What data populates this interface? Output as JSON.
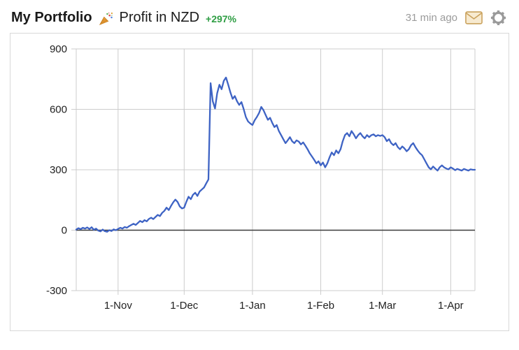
{
  "header": {
    "title": "My Portfolio",
    "emoji": "🎉",
    "subtitle": "Profit in NZD",
    "change": "+297%",
    "updated": "31 min ago"
  },
  "colors": {
    "line": "#3e63c4",
    "positive": "#2f9e44",
    "grid": "#cccccc",
    "zero_line": "#3a3a3a",
    "tick_text": "#222222",
    "muted_text": "#9b9b9b"
  },
  "chart_data": {
    "type": "line",
    "title": "Profit in NZD",
    "xlabel": "",
    "ylabel": "",
    "xlim": [
      -19,
      162
    ],
    "ylim": [
      -300,
      900
    ],
    "y_ticks": [
      -300,
      0,
      300,
      600,
      900
    ],
    "x_ticks": [
      {
        "day": 0,
        "label": "1-Nov"
      },
      {
        "day": 30,
        "label": "1-Dec"
      },
      {
        "day": 61,
        "label": "1-Jan"
      },
      {
        "day": 92,
        "label": "1-Feb"
      },
      {
        "day": 120,
        "label": "1-Mar"
      },
      {
        "day": 151,
        "label": "1-Apr"
      }
    ],
    "grid": true,
    "legend": "none",
    "series": [
      {
        "name": "Profit (NZD)",
        "color": "#3e63c4",
        "points": [
          [
            -19,
            3
          ],
          [
            -18,
            10
          ],
          [
            -17,
            5
          ],
          [
            -16,
            12
          ],
          [
            -15,
            8
          ],
          [
            -14,
            14
          ],
          [
            -13,
            6
          ],
          [
            -12,
            15
          ],
          [
            -11,
            2
          ],
          [
            -10,
            8
          ],
          [
            -9,
            -2
          ],
          [
            -8,
            -6
          ],
          [
            -7,
            3
          ],
          [
            -6,
            -5
          ],
          [
            -5,
            -8
          ],
          [
            -4,
            0
          ],
          [
            -3,
            -4
          ],
          [
            -2,
            4
          ],
          [
            -1,
            0
          ],
          [
            0,
            6
          ],
          [
            1,
            12
          ],
          [
            2,
            8
          ],
          [
            3,
            16
          ],
          [
            4,
            12
          ],
          [
            5,
            20
          ],
          [
            6,
            26
          ],
          [
            7,
            32
          ],
          [
            8,
            26
          ],
          [
            9,
            36
          ],
          [
            10,
            46
          ],
          [
            11,
            40
          ],
          [
            12,
            50
          ],
          [
            13,
            44
          ],
          [
            14,
            56
          ],
          [
            15,
            62
          ],
          [
            16,
            55
          ],
          [
            17,
            66
          ],
          [
            18,
            76
          ],
          [
            19,
            70
          ],
          [
            20,
            86
          ],
          [
            21,
            96
          ],
          [
            22,
            112
          ],
          [
            23,
            100
          ],
          [
            24,
            120
          ],
          [
            25,
            138
          ],
          [
            26,
            152
          ],
          [
            27,
            140
          ],
          [
            28,
            118
          ],
          [
            29,
            108
          ],
          [
            30,
            112
          ],
          [
            31,
            142
          ],
          [
            32,
            166
          ],
          [
            33,
            154
          ],
          [
            34,
            176
          ],
          [
            35,
            186
          ],
          [
            36,
            170
          ],
          [
            37,
            192
          ],
          [
            38,
            202
          ],
          [
            39,
            212
          ],
          [
            40,
            232
          ],
          [
            41,
            252
          ],
          [
            42,
            730
          ],
          [
            43,
            640
          ],
          [
            44,
            604
          ],
          [
            45,
            680
          ],
          [
            46,
            722
          ],
          [
            47,
            700
          ],
          [
            48,
            742
          ],
          [
            49,
            758
          ],
          [
            50,
            722
          ],
          [
            51,
            684
          ],
          [
            52,
            652
          ],
          [
            53,
            666
          ],
          [
            54,
            640
          ],
          [
            55,
            622
          ],
          [
            56,
            636
          ],
          [
            57,
            602
          ],
          [
            58,
            562
          ],
          [
            59,
            540
          ],
          [
            60,
            530
          ],
          [
            61,
            522
          ],
          [
            62,
            546
          ],
          [
            63,
            562
          ],
          [
            64,
            582
          ],
          [
            65,
            612
          ],
          [
            66,
            596
          ],
          [
            67,
            572
          ],
          [
            68,
            548
          ],
          [
            69,
            558
          ],
          [
            70,
            532
          ],
          [
            71,
            512
          ],
          [
            72,
            522
          ],
          [
            73,
            492
          ],
          [
            74,
            472
          ],
          [
            75,
            452
          ],
          [
            76,
            432
          ],
          [
            77,
            446
          ],
          [
            78,
            462
          ],
          [
            79,
            442
          ],
          [
            80,
            432
          ],
          [
            81,
            446
          ],
          [
            82,
            440
          ],
          [
            83,
            426
          ],
          [
            84,
            436
          ],
          [
            85,
            420
          ],
          [
            86,
            402
          ],
          [
            87,
            382
          ],
          [
            88,
            366
          ],
          [
            89,
            350
          ],
          [
            90,
            332
          ],
          [
            91,
            342
          ],
          [
            92,
            322
          ],
          [
            93,
            336
          ],
          [
            94,
            312
          ],
          [
            95,
            332
          ],
          [
            96,
            362
          ],
          [
            97,
            386
          ],
          [
            98,
            372
          ],
          [
            99,
            396
          ],
          [
            100,
            382
          ],
          [
            101,
            402
          ],
          [
            102,
            442
          ],
          [
            103,
            472
          ],
          [
            104,
            482
          ],
          [
            105,
            466
          ],
          [
            106,
            492
          ],
          [
            107,
            476
          ],
          [
            108,
            456
          ],
          [
            109,
            472
          ],
          [
            110,
            482
          ],
          [
            111,
            466
          ],
          [
            112,
            456
          ],
          [
            113,
            472
          ],
          [
            114,
            462
          ],
          [
            115,
            472
          ],
          [
            116,
            476
          ],
          [
            117,
            466
          ],
          [
            118,
            472
          ],
          [
            119,
            468
          ],
          [
            120,
            472
          ],
          [
            121,
            462
          ],
          [
            122,
            442
          ],
          [
            123,
            452
          ],
          [
            124,
            432
          ],
          [
            125,
            422
          ],
          [
            126,
            432
          ],
          [
            127,
            412
          ],
          [
            128,
            402
          ],
          [
            129,
            416
          ],
          [
            130,
            406
          ],
          [
            131,
            392
          ],
          [
            132,
            402
          ],
          [
            133,
            422
          ],
          [
            134,
            432
          ],
          [
            135,
            412
          ],
          [
            136,
            396
          ],
          [
            137,
            382
          ],
          [
            138,
            372
          ],
          [
            139,
            352
          ],
          [
            140,
            332
          ],
          [
            141,
            312
          ],
          [
            142,
            302
          ],
          [
            143,
            316
          ],
          [
            144,
            306
          ],
          [
            145,
            296
          ],
          [
            146,
            312
          ],
          [
            147,
            322
          ],
          [
            148,
            312
          ],
          [
            149,
            306
          ],
          [
            150,
            302
          ],
          [
            151,
            312
          ],
          [
            152,
            306
          ],
          [
            153,
            298
          ],
          [
            154,
            304
          ],
          [
            155,
            300
          ],
          [
            156,
            296
          ],
          [
            157,
            304
          ],
          [
            158,
            300
          ],
          [
            159,
            296
          ],
          [
            160,
            302
          ],
          [
            161,
            300
          ],
          [
            162,
            300
          ]
        ]
      }
    ]
  }
}
